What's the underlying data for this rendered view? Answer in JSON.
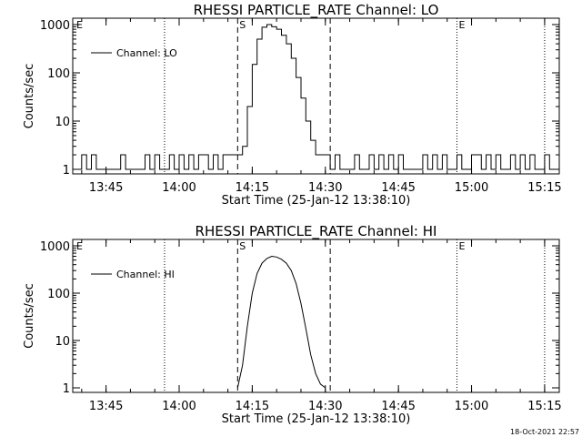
{
  "plots": [
    {
      "title": "RHESSI PARTICLE_RATE Channel: LO",
      "ylabel": "Counts/sec",
      "xlabel": "Start Time (25-Jan-12 13:38:10)",
      "legend": "Channel: LO",
      "markers": [
        "E",
        "S",
        "E"
      ]
    },
    {
      "title": "RHESSI PARTICLE_RATE Channel: HI",
      "ylabel": "Counts/sec",
      "xlabel": "Start Time (25-Jan-12 13:38:10)",
      "legend": "Channel: HI",
      "markers": [
        "E",
        "S",
        "E"
      ]
    }
  ],
  "footer": {
    "timestamp": "18-Oct-2021 22:57"
  },
  "chart_data": [
    {
      "type": "line",
      "title": "RHESSI PARTICLE_RATE Channel: LO",
      "xlabel": "Start Time (25-Jan-12 13:38:10)",
      "ylabel": "Counts/sec",
      "yscale": "log",
      "xlim": [
        "13:38:10",
        "15:18"
      ],
      "ylim": [
        1,
        1000
      ],
      "x_ticks": [
        "13:45",
        "14:00",
        "14:15",
        "14:30",
        "14:45",
        "15:00",
        "15:15"
      ],
      "y_ticks": [
        "1",
        "10",
        "100",
        "1000"
      ],
      "legend_position": "top-left",
      "dotted_lines": [
        "13:57",
        "14:57",
        "15:15"
      ],
      "dashed_lines": [
        "14:12",
        "14:31"
      ],
      "series": [
        {
          "name": "Channel: LO",
          "x": [
            "13:39",
            "13:40",
            "13:41",
            "13:42",
            "13:43",
            "13:44",
            "13:45",
            "13:46",
            "13:47",
            "13:48",
            "13:49",
            "13:50",
            "13:51",
            "13:52",
            "13:53",
            "13:54",
            "13:55",
            "13:56",
            "13:57",
            "13:58",
            "13:59",
            "14:00",
            "14:01",
            "14:02",
            "14:03",
            "14:04",
            "14:05",
            "14:06",
            "14:07",
            "14:08",
            "14:09",
            "14:10",
            "14:11",
            "14:12",
            "14:13",
            "14:14",
            "14:15",
            "14:16",
            "14:17",
            "14:18",
            "14:19",
            "14:20",
            "14:21",
            "14:22",
            "14:23",
            "14:24",
            "14:25",
            "14:26",
            "14:27",
            "14:28",
            "14:29",
            "14:30",
            "14:31",
            "14:32",
            "14:33",
            "14:34",
            "14:35",
            "14:36",
            "14:37",
            "14:38",
            "14:39",
            "14:40",
            "14:41",
            "14:42",
            "14:43",
            "14:44",
            "14:45",
            "14:46",
            "14:47",
            "14:48",
            "14:49",
            "14:50",
            "14:51",
            "14:52",
            "14:53",
            "14:54",
            "14:55",
            "14:56",
            "14:57",
            "14:58",
            "14:59",
            "15:00",
            "15:01",
            "15:02",
            "15:03",
            "15:04",
            "15:05",
            "15:06",
            "15:07",
            "15:08",
            "15:09",
            "15:10",
            "15:11",
            "15:12",
            "15:13",
            "15:14",
            "15:15",
            "15:16"
          ],
          "values": [
            1,
            2,
            1,
            2,
            1,
            1,
            1,
            1,
            1,
            2,
            1,
            1,
            1,
            1,
            2,
            1,
            2,
            1,
            1,
            2,
            1,
            2,
            1,
            2,
            1,
            2,
            2,
            1,
            2,
            1,
            2,
            2,
            2,
            2,
            3,
            20,
            150,
            500,
            880,
            1000,
            900,
            800,
            600,
            400,
            200,
            80,
            30,
            10,
            4,
            2,
            2,
            2,
            1,
            2,
            1,
            1,
            1,
            2,
            1,
            1,
            2,
            1,
            2,
            1,
            2,
            1,
            2,
            1,
            1,
            1,
            1,
            2,
            1,
            2,
            1,
            2,
            1,
            1,
            2,
            1,
            1,
            2,
            2,
            1,
            2,
            1,
            2,
            1,
            1,
            2,
            1,
            2,
            1,
            2,
            1,
            1,
            2,
            1
          ]
        }
      ]
    },
    {
      "type": "line",
      "title": "RHESSI PARTICLE_RATE Channel: HI",
      "xlabel": "Start Time (25-Jan-12 13:38:10)",
      "ylabel": "Counts/sec",
      "yscale": "log",
      "xlim": [
        "13:38:10",
        "15:18"
      ],
      "ylim": [
        1,
        1000
      ],
      "x_ticks": [
        "13:45",
        "14:00",
        "14:15",
        "14:30",
        "14:45",
        "15:00",
        "15:15"
      ],
      "y_ticks": [
        "1",
        "10",
        "100",
        "1000"
      ],
      "legend_position": "top-left",
      "dotted_lines": [
        "13:57",
        "14:57",
        "15:15"
      ],
      "dashed_lines": [
        "14:12",
        "14:31"
      ],
      "series": [
        {
          "name": "Channel: HI",
          "x": [
            "14:12",
            "14:13",
            "14:14",
            "14:15",
            "14:16",
            "14:17",
            "14:18",
            "14:19",
            "14:20",
            "14:21",
            "14:22",
            "14:23",
            "14:24",
            "14:25",
            "14:26",
            "14:27",
            "14:28",
            "14:29",
            "14:30"
          ],
          "values": [
            1,
            3,
            20,
            100,
            260,
            430,
            540,
            600,
            580,
            520,
            430,
            300,
            160,
            60,
            18,
            5,
            2,
            1.2,
            1
          ]
        }
      ]
    }
  ]
}
